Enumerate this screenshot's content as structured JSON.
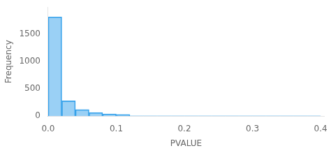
{
  "chart_data": {
    "type": "histogram",
    "xlabel": "PVALUE",
    "ylabel": "Frequency",
    "bins": [
      0.0,
      0.02,
      0.04,
      0.06,
      0.08,
      0.1,
      0.12,
      0.14,
      0.16,
      0.18,
      0.2,
      0.22,
      0.24,
      0.26,
      0.28,
      0.3,
      0.32,
      0.34,
      0.36,
      0.38,
      0.4
    ],
    "values": [
      1820,
      280,
      120,
      65,
      40,
      30,
      5,
      5,
      5,
      5,
      5,
      5,
      5,
      5,
      5,
      5,
      5,
      5,
      5,
      5
    ],
    "xlim": [
      0.0,
      0.405
    ],
    "ylim": [
      0,
      2000
    ],
    "xticks": [
      {
        "value": 0.0,
        "label": "0.0"
      },
      0.1,
      0.2,
      0.3,
      0.4
    ],
    "yticks": [
      0,
      500,
      1000,
      1500
    ],
    "grid": false
  }
}
